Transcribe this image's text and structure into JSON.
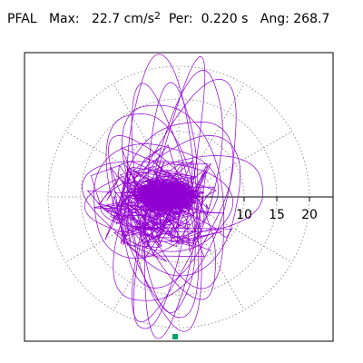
{
  "header": {
    "station": "PFAL",
    "max_label": "Max:",
    "max_value": "22.7 cm/s",
    "max_unit_exp": "2",
    "per_label": "Per:",
    "per_value": "0.220 s",
    "ang_label": "Ang:",
    "ang_value": "268.7"
  },
  "chart_data": {
    "type": "polar-orbit",
    "title": "PFAL Max: 22.7 cm/s2 Per: 0.220 s Ang: 268.7",
    "radial_ticks": [
      10,
      15,
      20
    ],
    "rings": [
      5,
      10,
      15,
      20
    ],
    "spokes_deg": [
      0,
      30,
      60,
      90,
      120,
      150,
      180,
      210,
      240,
      270,
      300,
      330
    ],
    "max_amplitude": 22.7,
    "peak_angle_deg": 268.7,
    "peak_period_s": 0.22,
    "trace_color": "#9000d0",
    "marker_color": "#00a070",
    "grid": true
  }
}
